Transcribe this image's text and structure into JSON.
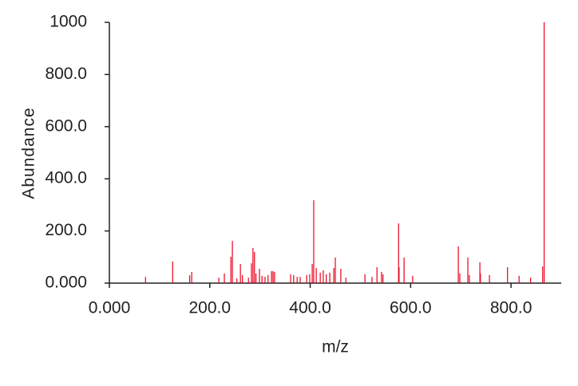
{
  "chart_data": {
    "type": "stem",
    "x_label": "m/z",
    "y_label": "Abundance",
    "x": [
      72,
      126,
      160,
      164,
      218,
      229,
      242,
      245,
      254,
      261,
      265,
      277,
      283,
      286,
      289,
      292,
      299,
      304,
      310,
      316,
      323,
      326,
      329,
      361,
      367,
      374,
      380,
      393,
      399,
      404,
      407,
      412,
      420,
      426,
      432,
      439,
      447,
      450,
      461,
      471,
      509,
      523,
      533,
      542,
      545,
      576,
      577,
      587,
      604,
      695,
      698,
      714,
      717,
      738,
      739,
      757,
      793,
      816,
      839,
      863,
      866
    ],
    "values": [
      24,
      83,
      30,
      43,
      21,
      37,
      101,
      162,
      18,
      73,
      31,
      21,
      76,
      135,
      119,
      37,
      55,
      28,
      24,
      31,
      46,
      46,
      43,
      34,
      31,
      24,
      24,
      31,
      34,
      73,
      318,
      58,
      40,
      49,
      34,
      40,
      58,
      98,
      55,
      21,
      34,
      24,
      61,
      43,
      34,
      229,
      61,
      98,
      28,
      141,
      37,
      98,
      31,
      80,
      37,
      31,
      61,
      28,
      21,
      64,
      1000
    ],
    "color": "#e8001c",
    "xlim": [
      0,
      900
    ],
    "xticks": [
      {
        "value": 0,
        "label": "0.000"
      },
      {
        "value": 200,
        "label": "200.0"
      },
      {
        "value": 400,
        "label": "400.0"
      },
      {
        "value": 600,
        "label": "600.0"
      },
      {
        "value": 800,
        "label": "800.0"
      }
    ],
    "ylim": [
      0,
      1000
    ],
    "yticks": [
      {
        "value": 0,
        "label": "0.000"
      },
      {
        "value": 200,
        "label": "200.0"
      },
      {
        "value": 400,
        "label": "400.0"
      },
      {
        "value": 600,
        "label": "600.0"
      },
      {
        "value": 800,
        "label": "800.0"
      },
      1000
    ]
  }
}
